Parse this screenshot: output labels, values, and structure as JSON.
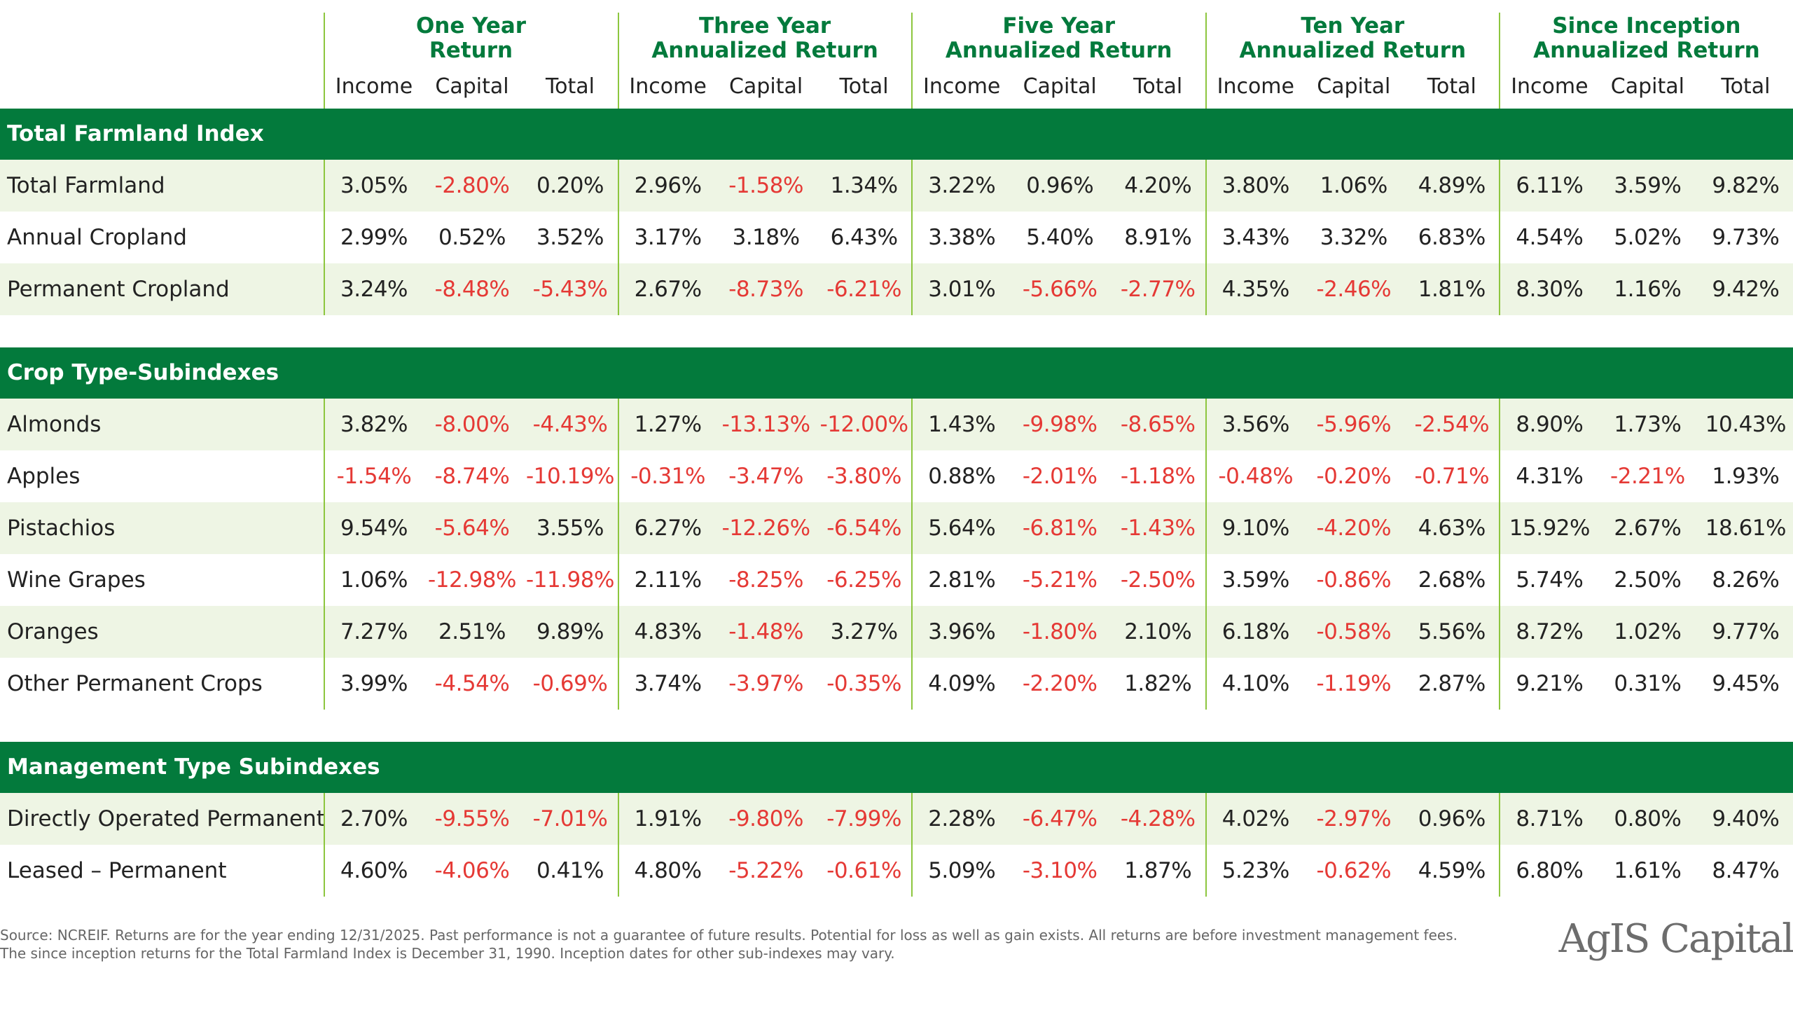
{
  "header": {
    "groups": [
      "One Year\nReturn",
      "Three Year\nAnnualized Return",
      "Five Year\nAnnualized Return",
      "Ten Year\nAnnualized Return",
      "Since Inception\nAnnualized Return"
    ],
    "subcolumns": [
      "Income",
      "Capital",
      "Total"
    ]
  },
  "colors": {
    "brand_green": "#037a3c",
    "divider_green": "#8dc63f",
    "row_tint": "#eef5e4",
    "negative_red": "#e53935"
  },
  "sections": [
    {
      "title": "Total Farmland Index",
      "rows": [
        {
          "label": "Total Farmland",
          "values": [
            "3.05%",
            "-2.80%",
            "0.20%",
            "2.96%",
            "-1.58%",
            "1.34%",
            "3.22%",
            "0.96%",
            "4.20%",
            "3.80%",
            "1.06%",
            "4.89%",
            "6.11%",
            "3.59%",
            "9.82%"
          ]
        },
        {
          "label": "Annual Cropland",
          "values": [
            "2.99%",
            "0.52%",
            "3.52%",
            "3.17%",
            "3.18%",
            "6.43%",
            "3.38%",
            "5.40%",
            "8.91%",
            "3.43%",
            "3.32%",
            "6.83%",
            "4.54%",
            "5.02%",
            "9.73%"
          ]
        },
        {
          "label": "Permanent Cropland",
          "values": [
            "3.24%",
            "-8.48%",
            "-5.43%",
            "2.67%",
            "-8.73%",
            "-6.21%",
            "3.01%",
            "-5.66%",
            "-2.77%",
            "4.35%",
            "-2.46%",
            "1.81%",
            "8.30%",
            "1.16%",
            "9.42%"
          ]
        }
      ]
    },
    {
      "title": "Crop Type-Subindexes",
      "rows": [
        {
          "label": "Almonds",
          "values": [
            "3.82%",
            "-8.00%",
            "-4.43%",
            "1.27%",
            "-13.13%",
            "-12.00%",
            "1.43%",
            "-9.98%",
            "-8.65%",
            "3.56%",
            "-5.96%",
            "-2.54%",
            "8.90%",
            "1.73%",
            "10.43%"
          ]
        },
        {
          "label": "Apples",
          "values": [
            "-1.54%",
            "-8.74%",
            "-10.19%",
            "-0.31%",
            "-3.47%",
            "-3.80%",
            "0.88%",
            "-2.01%",
            "-1.18%",
            "-0.48%",
            "-0.20%",
            "-0.71%",
            "4.31%",
            "-2.21%",
            "1.93%"
          ]
        },
        {
          "label": "Pistachios",
          "values": [
            "9.54%",
            "-5.64%",
            "3.55%",
            "6.27%",
            "-12.26%",
            "-6.54%",
            "5.64%",
            "-6.81%",
            "-1.43%",
            "9.10%",
            "-4.20%",
            "4.63%",
            "15.92%",
            "2.67%",
            "18.61%"
          ]
        },
        {
          "label": "Wine Grapes",
          "values": [
            "1.06%",
            "-12.98%",
            "-11.98%",
            "2.11%",
            "-8.25%",
            "-6.25%",
            "2.81%",
            "-5.21%",
            "-2.50%",
            "3.59%",
            "-0.86%",
            "2.68%",
            "5.74%",
            "2.50%",
            "8.26%"
          ]
        },
        {
          "label": "Oranges",
          "values": [
            "7.27%",
            "2.51%",
            "9.89%",
            "4.83%",
            "-1.48%",
            "3.27%",
            "3.96%",
            "-1.80%",
            "2.10%",
            "6.18%",
            "-0.58%",
            "5.56%",
            "8.72%",
            "1.02%",
            "9.77%"
          ]
        },
        {
          "label": "Other Permanent Crops",
          "values": [
            "3.99%",
            "-4.54%",
            "-0.69%",
            "3.74%",
            "-3.97%",
            "-0.35%",
            "4.09%",
            "-2.20%",
            "1.82%",
            "4.10%",
            "-1.19%",
            "2.87%",
            "9.21%",
            "0.31%",
            "9.45%"
          ]
        }
      ]
    },
    {
      "title": "Management Type Subindexes",
      "rows": [
        {
          "label": "Directly Operated Permanent",
          "values": [
            "2.70%",
            "-9.55%",
            "-7.01%",
            "1.91%",
            "-9.80%",
            "-7.99%",
            "2.28%",
            "-6.47%",
            "-4.28%",
            "4.02%",
            "-2.97%",
            "0.96%",
            "8.71%",
            "0.80%",
            "9.40%"
          ]
        },
        {
          "label": "Leased – Permanent",
          "values": [
            "4.60%",
            "-4.06%",
            "0.41%",
            "4.80%",
            "-5.22%",
            "-0.61%",
            "5.09%",
            "-3.10%",
            "1.87%",
            "5.23%",
            "-0.62%",
            "4.59%",
            "6.80%",
            "1.61%",
            "8.47%"
          ]
        }
      ]
    }
  ],
  "footer": {
    "line1": "Source: NCREIF.  Returns are for the year ending 12/31/2025.  Past performance is not a guarantee of future results.  Potential for loss as well as gain exists.  All returns are before investment management fees.",
    "line2": "The since inception returns for the Total Farmland Index is December 31, 1990.  Inception dates for other sub-indexes may vary."
  },
  "logo": {
    "text": "AgIS Capital"
  }
}
